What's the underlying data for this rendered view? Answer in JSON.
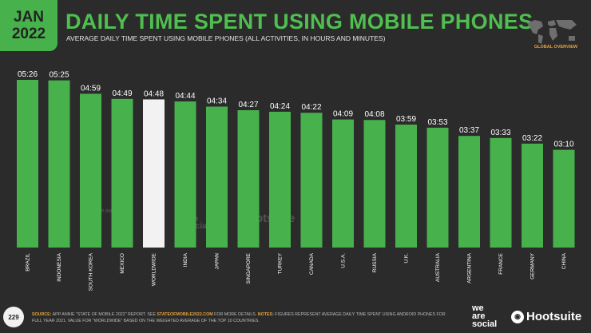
{
  "badge": {
    "month": "JAN",
    "year": "2022"
  },
  "header": {
    "title": "DAILY TIME SPENT USING MOBILE PHONES",
    "subtitle": "AVERAGE DAILY TIME SPENT USING MOBILE PHONES (ALL ACTIVITIES, IN HOURS AND MINUTES)"
  },
  "map_label": "GLOBAL OVERVIEW",
  "watermarks": {
    "appannie": "APP ANNIE",
    "we": "we",
    "are": "are",
    "social": "social",
    "hootsuite": "Hootsuite"
  },
  "footer": {
    "page_number": "229",
    "source_label": "SOURCE:",
    "source_text": "APP ANNIE \"STATE OF MOBILE 2022\" REPORT. SEE",
    "source_link": "STATEOFMOBILE2022.COM",
    "source_tail": "FOR MORE DETAILS.",
    "notes_label": "NOTES:",
    "notes_text": "FIGURES REPRESENT AVERAGE DAILY TIME SPENT USING ANDROID PHONES FOR FULL YEAR 2021. VALUE FOR \"WORLDWIDE\" BASED ON THE WEIGHTED AVERAGE OF THE TOP 10 COUNTRIES.",
    "brand_we": "we",
    "brand_are": "are",
    "brand_social": "social",
    "brand_hootsuite": "Hootsuite"
  },
  "colors": {
    "bar": "#47b14c",
    "highlight": "#f2f2f2",
    "background": "#2b2b2b",
    "accent": "#e8a33a"
  },
  "chart_data": {
    "type": "bar",
    "categories": [
      "BRAZIL",
      "INDONESIA",
      "SOUTH KOREA",
      "MEXICO",
      "WORLDWIDE",
      "INDIA",
      "JAPAN",
      "SINGAPORE",
      "TURKEY",
      "CANADA",
      "U.S.A.",
      "RUSSIA",
      "U.K.",
      "AUSTRALIA",
      "ARGENTINA",
      "FRANCE",
      "GERMANY",
      "CHINA"
    ],
    "values": [
      326,
      325,
      299,
      289,
      288,
      284,
      274,
      267,
      264,
      262,
      249,
      248,
      239,
      233,
      217,
      213,
      202,
      190
    ],
    "labels": [
      "05:26",
      "05:25",
      "04:59",
      "04:49",
      "04:48",
      "04:44",
      "04:34",
      "04:27",
      "04:24",
      "04:22",
      "04:09",
      "04:08",
      "03:59",
      "03:53",
      "03:37",
      "03:33",
      "03:22",
      "03:10"
    ],
    "unit": "minutes",
    "highlight_category": "WORLDWIDE",
    "ylim": [
      0,
      326
    ]
  }
}
